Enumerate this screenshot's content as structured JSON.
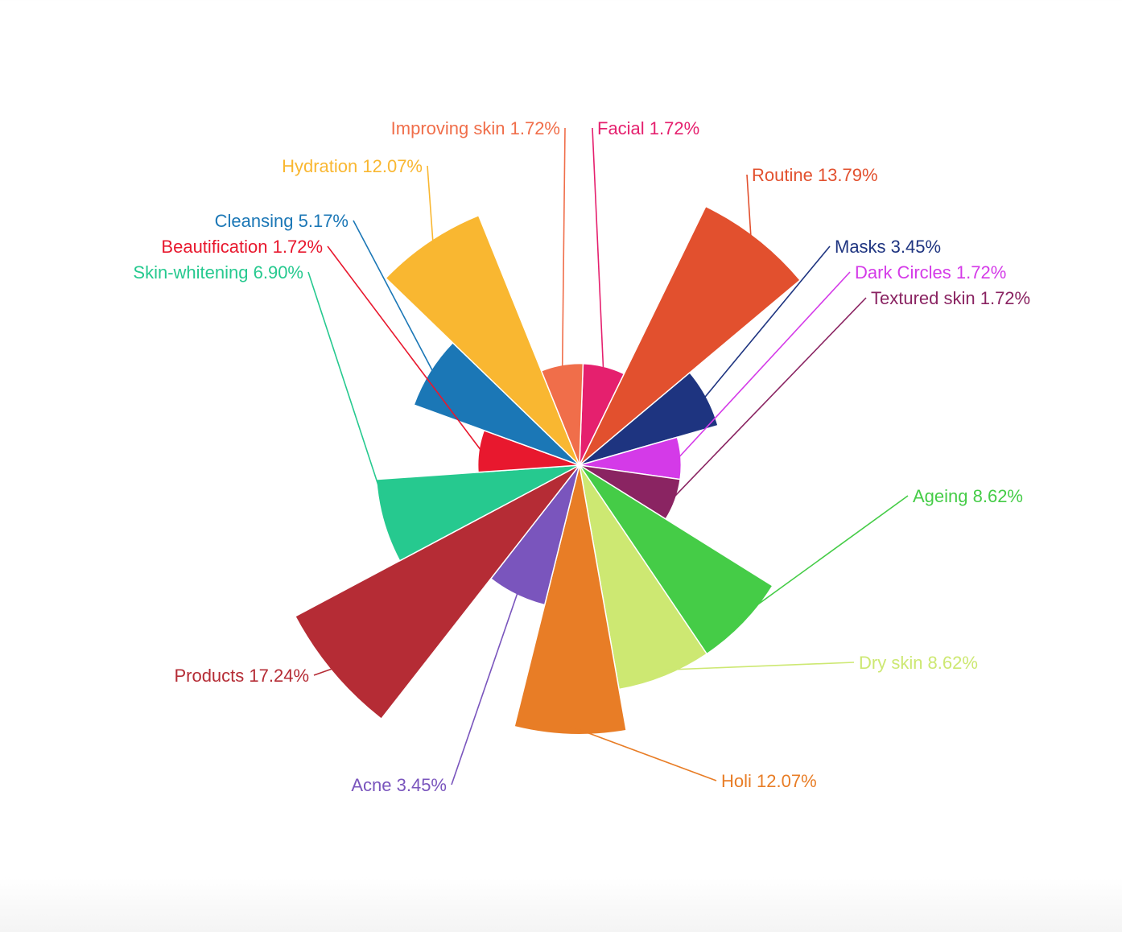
{
  "chart_data": {
    "type": "pie",
    "variant": "variable-radius rose (all slices equal angle, radius proportional to value)",
    "title": "",
    "unit": "%",
    "slices": [
      {
        "label": "Facial",
        "value": 1.72,
        "display": "Facial 1.72%",
        "color": "#e5206e"
      },
      {
        "label": "Routine",
        "value": 13.79,
        "display": "Routine 13.79%",
        "color": "#e2502e"
      },
      {
        "label": "Masks",
        "value": 3.45,
        "display": "Masks 3.45%",
        "color": "#1e3480"
      },
      {
        "label": "Dark Circles",
        "value": 1.72,
        "display": "Dark Circles 1.72%",
        "color": "#d43ae8"
      },
      {
        "label": "Textured skin",
        "value": 1.72,
        "display": "Textured skin 1.72%",
        "color": "#8a2462"
      },
      {
        "label": "Ageing",
        "value": 8.62,
        "display": "Ageing 8.62%",
        "color": "#45cc47"
      },
      {
        "label": "Dry skin",
        "value": 8.62,
        "display": "Dry skin 8.62%",
        "color": "#cde872"
      },
      {
        "label": "Holi",
        "value": 12.07,
        "display": "Holi 12.07%",
        "color": "#e87d26"
      },
      {
        "label": "Acne",
        "value": 3.45,
        "display": "Acne 3.45%",
        "color": "#7a55bd"
      },
      {
        "label": "Products",
        "value": 17.24,
        "display": "Products 17.24%",
        "color": "#b52c35"
      },
      {
        "label": "Skin-whitening",
        "value": 6.9,
        "display": "Skin-whitening 6.90%",
        "color": "#26c98f"
      },
      {
        "label": "Beautification",
        "value": 1.72,
        "display": "Beautification 1.72%",
        "color": "#e8182e"
      },
      {
        "label": "Cleansing",
        "value": 5.17,
        "display": "Cleansing 5.17%",
        "color": "#1b77b6"
      },
      {
        "label": "Hydration",
        "value": 12.07,
        "display": "Hydration 12.07%",
        "color": "#f9b731"
      },
      {
        "label": "Improving skin",
        "value": 1.72,
        "display": "Improving skin 1.72%",
        "color": "#f06e4a"
      }
    ]
  }
}
